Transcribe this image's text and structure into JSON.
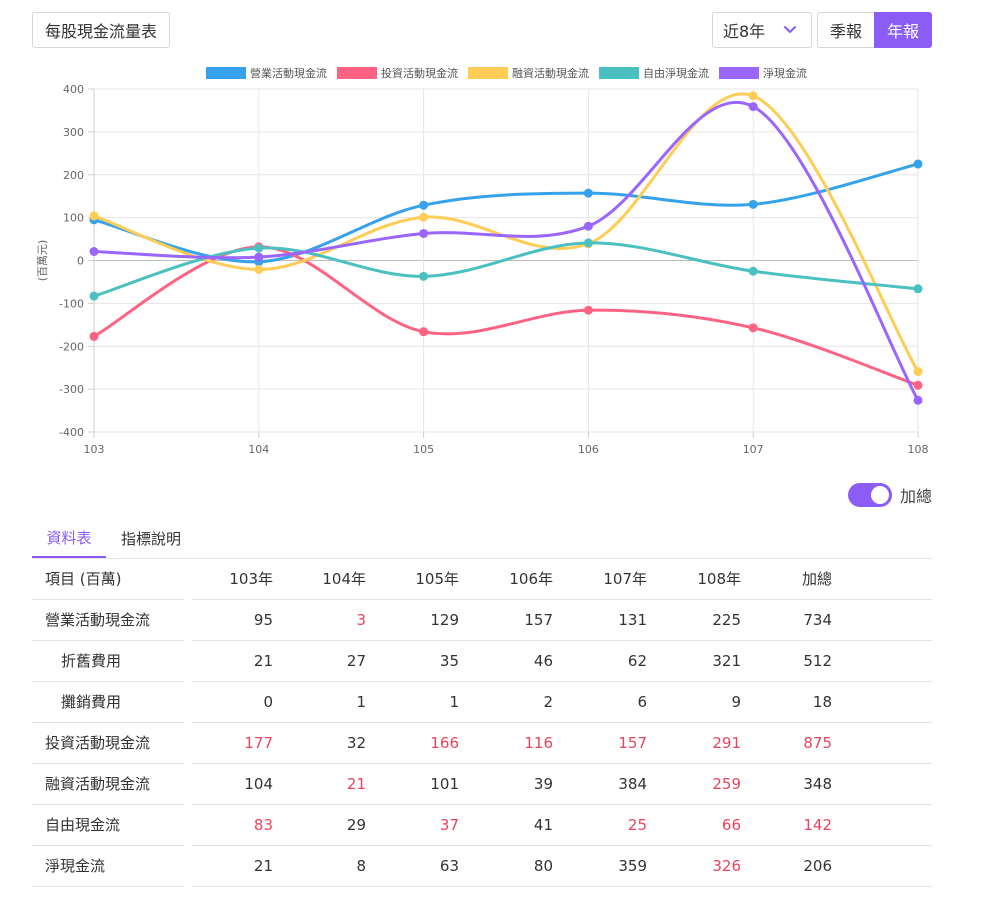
{
  "header": {
    "title_button": "每股現金流量表",
    "range_select": "近8年",
    "period_options": [
      "季報",
      "年報"
    ],
    "active_period": "年報"
  },
  "colors": {
    "accent": "#8b5cf6",
    "negative": "#e8455d"
  },
  "chart_data": {
    "type": "line",
    "x": [
      "103",
      "104",
      "105",
      "106",
      "107",
      "108"
    ],
    "ylabel": "(百萬元)",
    "ylim": [
      -400,
      400
    ],
    "yticks": [
      "400",
      "300",
      "200",
      "100",
      "0",
      "-100",
      "-200",
      "-300",
      "-400"
    ],
    "grid": true,
    "legend_position": "top",
    "series": [
      {
        "name": "營業活動現金流",
        "color": "#36a2eb",
        "values": [
          95,
          -3,
          129,
          157,
          131,
          225
        ]
      },
      {
        "name": "投資活動現金流",
        "color": "#ff6384",
        "values": [
          -177,
          32,
          -166,
          -116,
          -157,
          -291
        ]
      },
      {
        "name": "融資活動現金流",
        "color": "#ffcd56",
        "values": [
          104,
          -21,
          101,
          39,
          384,
          -259
        ]
      },
      {
        "name": "自由淨現金流",
        "color": "#4bc0c0",
        "values": [
          -83,
          29,
          -37,
          41,
          -25,
          -66
        ]
      },
      {
        "name": "淨現金流",
        "color": "#9966ff",
        "values": [
          21,
          8,
          63,
          80,
          359,
          -326
        ]
      }
    ]
  },
  "toggle": {
    "label": "加總",
    "on": true
  },
  "tabs": [
    {
      "label": "資料表",
      "active": true
    },
    {
      "label": "指標說明",
      "active": false
    }
  ],
  "table": {
    "headers": [
      "項目 (百萬)",
      "103年",
      "104年",
      "105年",
      "106年",
      "107年",
      "108年",
      "加總"
    ],
    "rows": [
      {
        "label": "營業活動現金流",
        "indent": false,
        "values": [
          "95",
          "3",
          "129",
          "157",
          "131",
          "225",
          "734"
        ],
        "neg": [
          false,
          true,
          false,
          false,
          false,
          false,
          false
        ]
      },
      {
        "label": "折舊費用",
        "indent": true,
        "values": [
          "21",
          "27",
          "35",
          "46",
          "62",
          "321",
          "512"
        ],
        "neg": [
          false,
          false,
          false,
          false,
          false,
          false,
          false
        ]
      },
      {
        "label": "攤銷費用",
        "indent": true,
        "values": [
          "0",
          "1",
          "1",
          "2",
          "6",
          "9",
          "18"
        ],
        "neg": [
          false,
          false,
          false,
          false,
          false,
          false,
          false
        ]
      },
      {
        "label": "投資活動現金流",
        "indent": false,
        "values": [
          "177",
          "32",
          "166",
          "116",
          "157",
          "291",
          "875"
        ],
        "neg": [
          true,
          false,
          true,
          true,
          true,
          true,
          true
        ]
      },
      {
        "label": "融資活動現金流",
        "indent": false,
        "values": [
          "104",
          "21",
          "101",
          "39",
          "384",
          "259",
          "348"
        ],
        "neg": [
          false,
          true,
          false,
          false,
          false,
          true,
          false
        ]
      },
      {
        "label": "自由現金流",
        "indent": false,
        "values": [
          "83",
          "29",
          "37",
          "41",
          "25",
          "66",
          "142"
        ],
        "neg": [
          true,
          false,
          true,
          false,
          true,
          true,
          true
        ]
      },
      {
        "label": "淨現金流",
        "indent": false,
        "values": [
          "21",
          "8",
          "63",
          "80",
          "359",
          "326",
          "206"
        ],
        "neg": [
          false,
          false,
          false,
          false,
          false,
          true,
          false
        ]
      }
    ]
  }
}
